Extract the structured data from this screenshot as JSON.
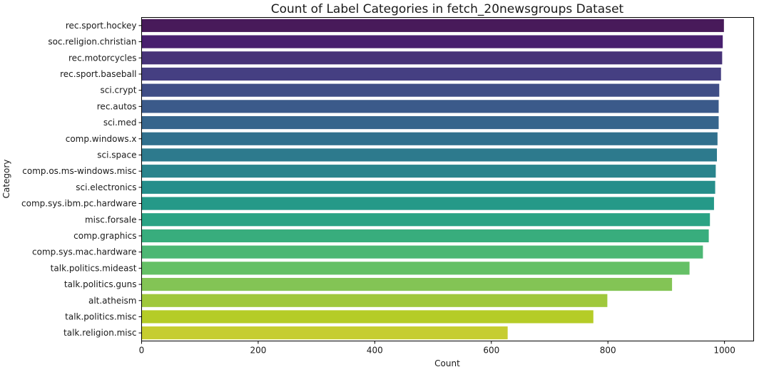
{
  "chart_data": {
    "type": "bar",
    "orientation": "horizontal",
    "title": "Count of Label Categories in fetch_20newsgroups Dataset",
    "xlabel": "Count",
    "ylabel": "Category",
    "xlim": [
      0,
      1050
    ],
    "xticks": [
      0,
      200,
      400,
      600,
      800,
      1000
    ],
    "grid": false,
    "legend": "none",
    "palette": "viridis",
    "categories": [
      "rec.sport.hockey",
      "soc.religion.christian",
      "rec.motorcycles",
      "rec.sport.baseball",
      "sci.crypt",
      "rec.autos",
      "sci.med",
      "comp.windows.x",
      "sci.space",
      "comp.os.ms-windows.misc",
      "sci.electronics",
      "comp.sys.ibm.pc.hardware",
      "misc.forsale",
      "comp.graphics",
      "comp.sys.mac.hardware",
      "talk.politics.mideast",
      "talk.politics.guns",
      "alt.atheism",
      "talk.politics.misc",
      "talk.religion.misc"
    ],
    "values": [
      999,
      997,
      996,
      994,
      991,
      990,
      990,
      988,
      987,
      985,
      984,
      982,
      975,
      973,
      963,
      940,
      910,
      799,
      775,
      628
    ],
    "colors": [
      "#481a5a",
      "#481f6e",
      "#473378",
      "#453f82",
      "#404e86",
      "#3b5a8a",
      "#36658c",
      "#31708d",
      "#2d7a8d",
      "#2a848d",
      "#268e8b",
      "#259988",
      "#2aa384",
      "#38ad7d",
      "#4cb774",
      "#65c066",
      "#83c455",
      "#9fc83c",
      "#b5cc27",
      "#c6cd30"
    ]
  }
}
